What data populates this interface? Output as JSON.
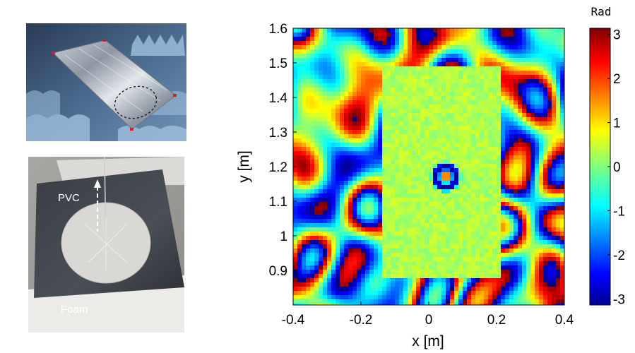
{
  "figure": {
    "photo_top": {
      "description_icon": "foil-covered-panel-photo"
    },
    "photo_bottom": {
      "pvc_label": "PVC",
      "foam_label": "Foam",
      "description_icon": "pvc-plate-on-foam-photo"
    }
  },
  "chart_data": {
    "type": "heatmap",
    "xlabel": "x [m]",
    "ylabel": "y [m]",
    "xlim": [
      -0.4,
      0.4
    ],
    "ylim": [
      0.8,
      1.6
    ],
    "x_ticks": [
      {
        "value": -0.4,
        "label": "-0.4"
      },
      {
        "value": -0.2,
        "label": "-0.2"
      },
      {
        "value": 0,
        "label": "0"
      },
      {
        "value": 0.2,
        "label": "0.2"
      },
      {
        "value": 0.4,
        "label": "0.4"
      }
    ],
    "y_ticks": [
      {
        "value": 0.9,
        "label": "0.9"
      },
      {
        "value": 1.0,
        "label": "1"
      },
      {
        "value": 1.1,
        "label": "1.1"
      },
      {
        "value": 1.2,
        "label": "1.2"
      },
      {
        "value": 1.3,
        "label": "1.3"
      },
      {
        "value": 1.4,
        "label": "1.4"
      },
      {
        "value": 1.5,
        "label": "1.5"
      },
      {
        "value": 1.6,
        "label": "1.6"
      }
    ],
    "colorbar": {
      "title": "Rad",
      "range": [
        -3.14,
        3.14
      ],
      "colormap": "jet",
      "ticks": [
        {
          "value": 3,
          "label": "3"
        },
        {
          "value": 2,
          "label": "2"
        },
        {
          "value": 1,
          "label": "1"
        },
        {
          "value": 0,
          "label": "0"
        },
        {
          "value": -1,
          "label": "-1"
        },
        {
          "value": -2,
          "label": "-2"
        },
        {
          "value": -3,
          "label": "-3"
        }
      ]
    },
    "features": {
      "uniform_region_x": [
        -0.14,
        0.21
      ],
      "uniform_region_y": [
        0.88,
        1.49
      ],
      "uniform_phase": 0.3,
      "ring_center": [
        0.05,
        1.17
      ],
      "ring_radius": 0.045
    },
    "colors": {
      "jet_low": "#00008f",
      "jet_mid": "#7fff7f",
      "jet_high": "#800000"
    }
  }
}
